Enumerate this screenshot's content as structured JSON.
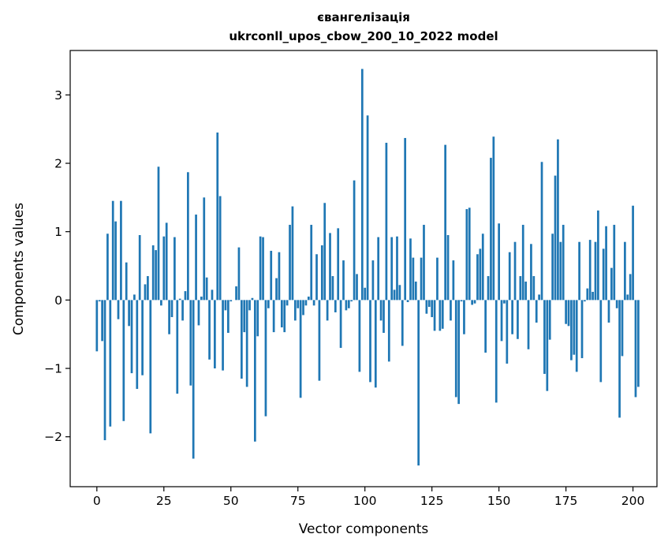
{
  "chart_data": {
    "type": "bar",
    "title": "євангелізація",
    "subtitle": "ukrconll_upos_cbow_200_10_2022 model",
    "xlabel": "Vector components",
    "ylabel": "Components values",
    "xlim": [
      -9.95,
      208.95
    ],
    "ylim": [
      -2.73,
      3.65
    ],
    "xticks": [
      0,
      25,
      50,
      75,
      100,
      125,
      150,
      175,
      200
    ],
    "yticks": [
      -2,
      -1,
      0,
      1,
      2,
      3
    ],
    "grid": false,
    "bar_color": "#1f77b4",
    "values": [
      -0.75,
      -0.02,
      -0.6,
      -2.05,
      0.97,
      -1.85,
      1.45,
      1.15,
      -0.28,
      1.45,
      -1.77,
      0.55,
      -0.38,
      -1.07,
      0.08,
      -1.3,
      0.95,
      -1.1,
      0.23,
      0.35,
      -1.95,
      0.8,
      0.73,
      1.95,
      -0.08,
      0.93,
      1.13,
      -0.5,
      -0.25,
      0.92,
      -1.37,
      0.02,
      -0.3,
      0.13,
      1.87,
      -1.25,
      -2.32,
      1.25,
      -0.37,
      0.05,
      1.5,
      0.33,
      -0.87,
      0.15,
      -1.0,
      2.45,
      1.52,
      -1.03,
      -0.15,
      -0.48,
      -0.02,
      0.0,
      0.2,
      0.77,
      -1.15,
      -0.47,
      -1.27,
      -0.15,
      0.03,
      -2.07,
      -0.53,
      0.93,
      0.92,
      -1.7,
      -0.12,
      0.72,
      -0.47,
      0.32,
      0.7,
      -0.4,
      -0.47,
      -0.08,
      1.1,
      1.37,
      -0.3,
      -0.12,
      -1.43,
      -0.22,
      -0.08,
      0.05,
      1.1,
      -0.08,
      0.67,
      -1.18,
      0.8,
      1.42,
      -0.3,
      0.98,
      0.35,
      -0.18,
      1.05,
      -0.7,
      0.58,
      -0.15,
      -0.12,
      -0.02,
      1.75,
      0.38,
      -1.05,
      3.38,
      0.18,
      2.7,
      -1.2,
      0.58,
      -1.28,
      0.92,
      -0.3,
      -0.48,
      2.3,
      -0.9,
      0.92,
      0.15,
      0.93,
      0.22,
      -0.67,
      2.37,
      -0.03,
      0.9,
      0.62,
      0.27,
      -2.42,
      0.62,
      1.1,
      -0.2,
      -0.1,
      -0.25,
      -0.45,
      0.62,
      -0.45,
      -0.42,
      2.27,
      0.95,
      -0.3,
      0.58,
      -1.42,
      -1.52,
      -0.02,
      -0.5,
      1.33,
      1.35,
      -0.07,
      -0.05,
      0.67,
      0.75,
      0.97,
      -0.77,
      0.35,
      2.08,
      2.39,
      -1.5,
      1.12,
      -0.6,
      -0.05,
      -0.93,
      0.7,
      -0.5,
      0.85,
      -0.57,
      0.35,
      1.1,
      0.27,
      -0.72,
      0.82,
      0.35,
      -0.33,
      0.08,
      2.02,
      -1.08,
      -1.33,
      -0.58,
      0.97,
      1.82,
      2.35,
      0.85,
      1.1,
      -0.35,
      -0.38,
      -0.88,
      -0.8,
      -1.05,
      0.85,
      -0.85,
      -0.02,
      0.17,
      0.88,
      0.12,
      0.85,
      1.31,
      -1.2,
      0.75,
      1.08,
      -0.33,
      0.47,
      1.1,
      -0.12,
      -1.72,
      -0.82,
      0.85,
      0.08,
      0.38,
      1.38,
      -1.42,
      -1.27
    ]
  }
}
